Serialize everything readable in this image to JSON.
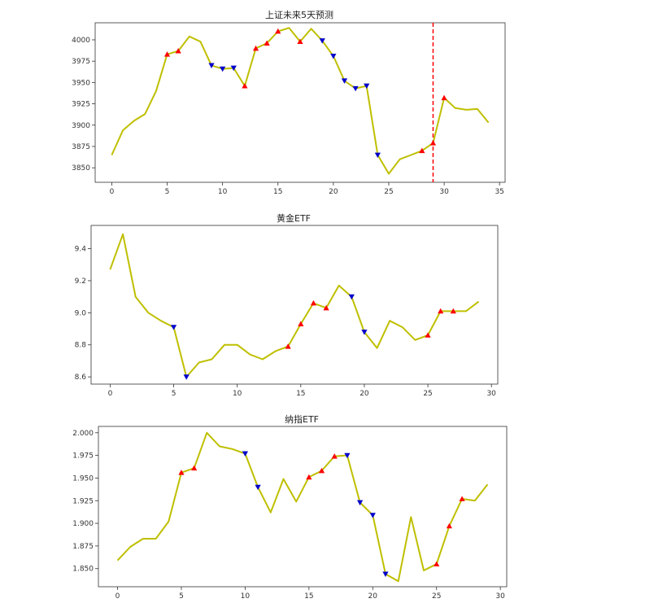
{
  "chart_data": [
    {
      "type": "line",
      "title": "上证未来5天预测",
      "xlim": [
        -1.5,
        35.5
      ],
      "ylim": [
        3833,
        4020
      ],
      "xticks": [
        0,
        5,
        10,
        15,
        20,
        25,
        30,
        35
      ],
      "yticks": [
        3850,
        3875,
        3900,
        3925,
        3950,
        3975,
        4000
      ],
      "line_color": "#bfbf00",
      "vline": {
        "x": 29,
        "color": "#ff0000",
        "style": "dashed"
      },
      "x": [
        0,
        1,
        2,
        3,
        4,
        5,
        6,
        7,
        8,
        9,
        10,
        11,
        12,
        13,
        14,
        15,
        16,
        17,
        18,
        19,
        20,
        21,
        22,
        23,
        24,
        25,
        26,
        27,
        28,
        29,
        30,
        31,
        32,
        33,
        34
      ],
      "values": [
        3865,
        3894,
        3905,
        3913,
        3940,
        3983,
        3987,
        4004,
        3998,
        3970,
        3966,
        3967,
        3946,
        3990,
        3996,
        4010,
        4014,
        3998,
        4013,
        3999,
        3981,
        3952,
        3943,
        3946,
        3865,
        3843,
        3860,
        3865,
        3870,
        3879,
        3932,
        3920,
        3918,
        3919,
        3903
      ],
      "buy_markers": [
        {
          "x": 5,
          "y": 3983
        },
        {
          "x": 6,
          "y": 3987
        },
        {
          "x": 12,
          "y": 3946
        },
        {
          "x": 13,
          "y": 3990
        },
        {
          "x": 14,
          "y": 3996
        },
        {
          "x": 15,
          "y": 4010
        },
        {
          "x": 17,
          "y": 3998
        },
        {
          "x": 28,
          "y": 3870
        },
        {
          "x": 29,
          "y": 3879
        },
        {
          "x": 30,
          "y": 3932
        }
      ],
      "sell_markers": [
        {
          "x": 9,
          "y": 3970
        },
        {
          "x": 10,
          "y": 3966
        },
        {
          "x": 11,
          "y": 3967
        },
        {
          "x": 19,
          "y": 3999
        },
        {
          "x": 20,
          "y": 3981
        },
        {
          "x": 21,
          "y": 3952
        },
        {
          "x": 22,
          "y": 3943
        },
        {
          "x": 23,
          "y": 3946
        },
        {
          "x": 24,
          "y": 3865
        }
      ],
      "buy_color": "#ff0000",
      "sell_color": "#0000cc"
    },
    {
      "type": "line",
      "title": "黄金ETF",
      "xlim": [
        -1.5,
        30.5
      ],
      "ylim": [
        8.555,
        9.545
      ],
      "xticks": [
        0,
        5,
        10,
        15,
        20,
        25,
        30
      ],
      "yticks": [
        8.6,
        8.8,
        9.0,
        9.2,
        9.4
      ],
      "line_color": "#bfbf00",
      "x": [
        0,
        1,
        2,
        3,
        4,
        5,
        6,
        7,
        8,
        9,
        10,
        11,
        12,
        13,
        14,
        15,
        16,
        17,
        18,
        19,
        20,
        21,
        22,
        23,
        24,
        25,
        26,
        27,
        28,
        29
      ],
      "values": [
        9.27,
        9.49,
        9.1,
        9.0,
        8.95,
        8.91,
        8.6,
        8.69,
        8.71,
        8.8,
        8.8,
        8.74,
        8.71,
        8.76,
        8.79,
        8.93,
        9.06,
        9.03,
        9.17,
        9.1,
        8.88,
        8.78,
        8.95,
        8.91,
        8.83,
        8.86,
        9.01,
        9.01,
        9.01,
        9.07
      ],
      "buy_markers": [
        {
          "x": 14,
          "y": 8.79
        },
        {
          "x": 15,
          "y": 8.93
        },
        {
          "x": 16,
          "y": 9.06
        },
        {
          "x": 17,
          "y": 9.03
        },
        {
          "x": 25,
          "y": 8.86
        },
        {
          "x": 26,
          "y": 9.01
        },
        {
          "x": 27,
          "y": 9.01
        }
      ],
      "sell_markers": [
        {
          "x": 5,
          "y": 8.91
        },
        {
          "x": 6,
          "y": 8.6
        },
        {
          "x": 19,
          "y": 9.1
        },
        {
          "x": 20,
          "y": 8.88
        }
      ],
      "buy_color": "#ff0000",
      "sell_color": "#0000cc"
    },
    {
      "type": "line",
      "title": "纳指ETF",
      "xlim": [
        -1.5,
        30.5
      ],
      "ylim": [
        1.83,
        2.007
      ],
      "xticks": [
        0,
        5,
        10,
        15,
        20,
        25,
        30
      ],
      "yticks": [
        1.85,
        1.875,
        1.9,
        1.925,
        1.95,
        1.975,
        2.0
      ],
      "line_color": "#bfbf00",
      "x": [
        0,
        1,
        2,
        3,
        4,
        5,
        6,
        7,
        8,
        9,
        10,
        11,
        12,
        13,
        14,
        15,
        16,
        17,
        18,
        19,
        20,
        21,
        22,
        23,
        24,
        25,
        26,
        27,
        28,
        29
      ],
      "values": [
        1.859,
        1.874,
        1.883,
        1.883,
        1.902,
        1.956,
        1.961,
        2.0,
        1.985,
        1.982,
        1.977,
        1.94,
        1.912,
        1.949,
        1.924,
        1.951,
        1.958,
        1.974,
        1.975,
        1.923,
        1.909,
        1.844,
        1.836,
        1.907,
        1.848,
        1.855,
        1.897,
        1.927,
        1.925,
        1.943
      ],
      "buy_markers": [
        {
          "x": 5,
          "y": 1.956
        },
        {
          "x": 6,
          "y": 1.961
        },
        {
          "x": 15,
          "y": 1.951
        },
        {
          "x": 16,
          "y": 1.958
        },
        {
          "x": 17,
          "y": 1.974
        },
        {
          "x": 25,
          "y": 1.855
        },
        {
          "x": 26,
          "y": 1.897
        },
        {
          "x": 27,
          "y": 1.927
        }
      ],
      "sell_markers": [
        {
          "x": 10,
          "y": 1.977
        },
        {
          "x": 11,
          "y": 1.94
        },
        {
          "x": 18,
          "y": 1.975
        },
        {
          "x": 19,
          "y": 1.923
        },
        {
          "x": 20,
          "y": 1.909
        },
        {
          "x": 21,
          "y": 1.844
        }
      ],
      "buy_color": "#ff0000",
      "sell_color": "#0000cc"
    }
  ]
}
